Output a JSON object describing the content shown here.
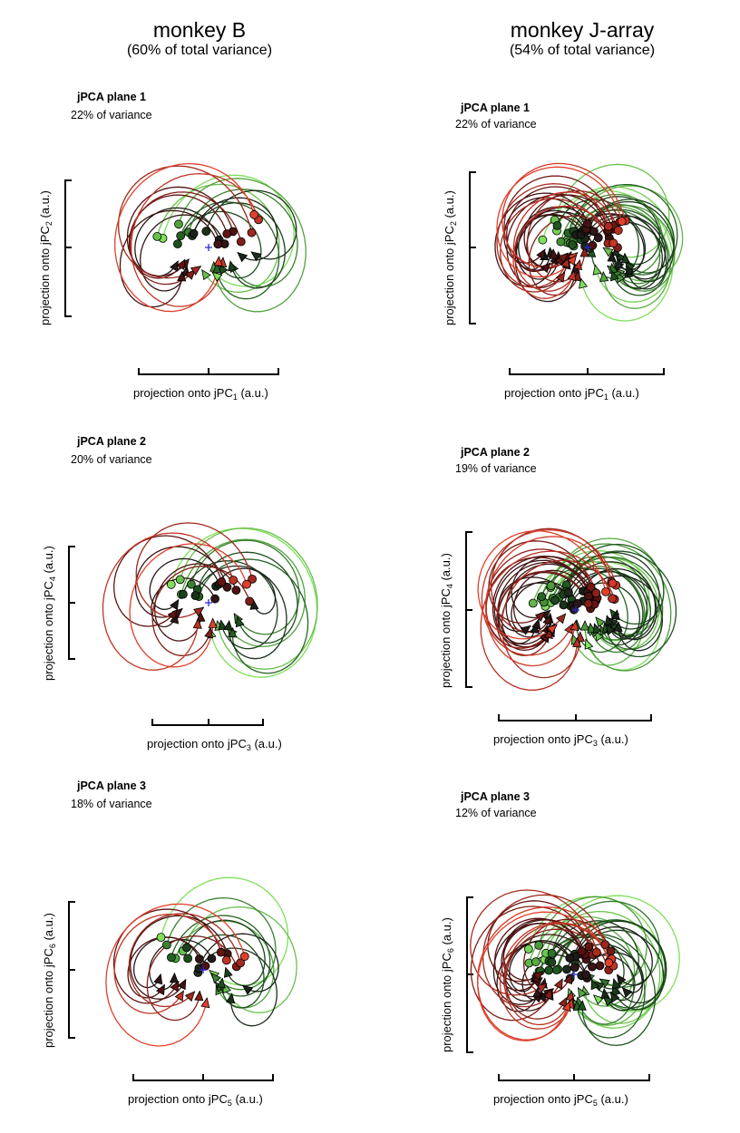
{
  "columns": [
    {
      "name": "monkey B",
      "subtitle": "(60% of total variance)"
    },
    {
      "name": "monkey J-array",
      "subtitle": "(54% of total variance)"
    }
  ],
  "axis_text": {
    "prefix": "projection onto jPC",
    "suffix": " (a.u.)"
  },
  "chart_data": [
    {
      "type": "scatter",
      "column": "monkey B",
      "title": "jPCA plane 1",
      "variance": "22% of variance",
      "x_axis": "1",
      "y_axis": "2",
      "xlabel": "projection onto jPC1 (a.u.)",
      "ylabel": "projection onto jPC2 (a.u.)",
      "trajectories": "phase-space trajectories with circular start markers and arrowheads, colored from green to red"
    },
    {
      "type": "scatter",
      "column": "monkey J-array",
      "title": "jPCA plane 1",
      "variance": "22% of variance",
      "x_axis": "1",
      "y_axis": "2",
      "xlabel": "projection onto jPC1 (a.u.)",
      "ylabel": "projection onto jPC2 (a.u.)"
    },
    {
      "type": "scatter",
      "column": "monkey B",
      "title": "jPCA plane 2",
      "variance": "20% of variance",
      "x_axis": "3",
      "y_axis": "4",
      "xlabel": "projection onto jPC3 (a.u.)",
      "ylabel": "projection onto jPC4 (a.u.)"
    },
    {
      "type": "scatter",
      "column": "monkey J-array",
      "title": "jPCA plane 2",
      "variance": "19% of variance",
      "x_axis": "3",
      "y_axis": "4",
      "xlabel": "projection onto jPC3 (a.u.)",
      "ylabel": "projection onto jPC4 (a.u.)"
    },
    {
      "type": "scatter",
      "column": "monkey B",
      "title": "jPCA plane 3",
      "variance": "18% of variance",
      "x_axis": "5",
      "y_axis": "6",
      "xlabel": "projection onto jPC5 (a.u.)",
      "ylabel": "projection onto jPC6 (a.u.)"
    },
    {
      "type": "scatter",
      "column": "monkey J-array",
      "title": "jPCA plane 3",
      "variance": "12% of variance",
      "x_axis": "5",
      "y_axis": "6",
      "xlabel": "projection onto jPC5 (a.u.)",
      "ylabel": "projection onto jPC6 (a.u.)"
    }
  ],
  "colors": {
    "green_light": "#7ee05a",
    "green_dark": "#1f5a1f",
    "black": "#1a1a1a",
    "red_dark": "#5a1010",
    "red_light": "#e0402a",
    "origin_marker": "#2a2ad0"
  }
}
